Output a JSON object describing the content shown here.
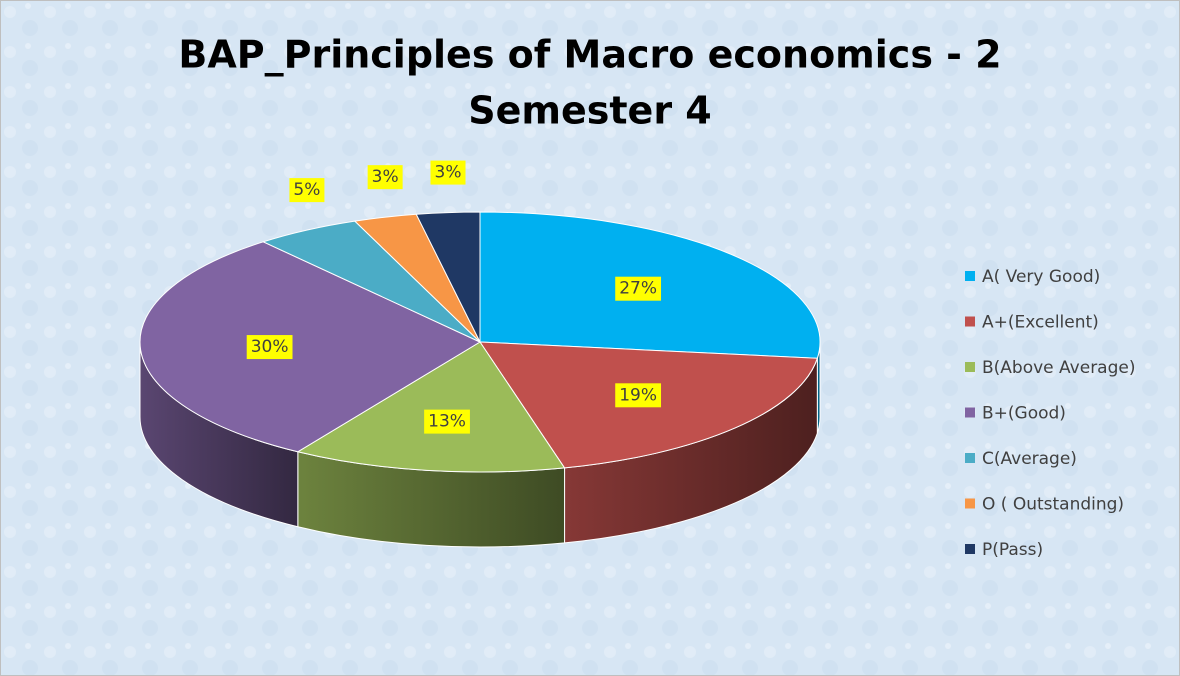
{
  "chart_data": {
    "type": "pie",
    "title": "BAP_Principles of Macro economics - 2",
    "subtitle": "Semester 4",
    "categories": [
      "A( Very Good)",
      "A+(Excellent)",
      "B(Above Average)",
      "B+(Good)",
      "C(Average)",
      "O ( Outstanding)",
      "P(Pass)"
    ],
    "values": [
      27,
      19,
      13,
      30,
      5,
      3,
      3
    ],
    "value_labels": [
      "27%",
      "19%",
      "13%",
      "30%",
      "5%",
      "3%",
      "3%"
    ],
    "colors": [
      "#00b0f0",
      "#c0504d",
      "#9bbb59",
      "#8064a2",
      "#4bacc6",
      "#f79646",
      "#1f3864"
    ],
    "legend": "right"
  }
}
